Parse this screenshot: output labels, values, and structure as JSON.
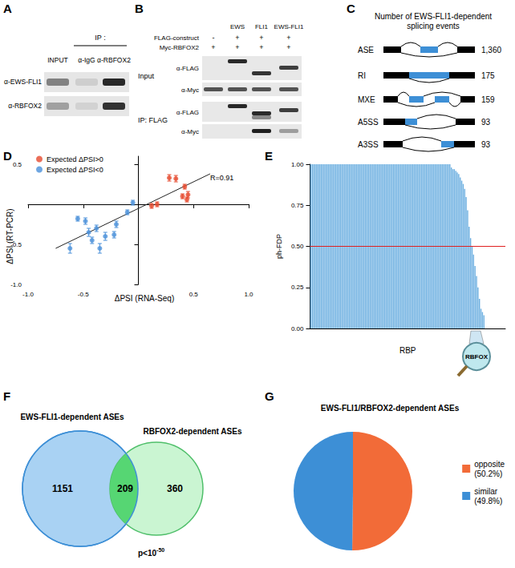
{
  "panel_letters": [
    "A",
    "B",
    "C",
    "D",
    "E",
    "F",
    "G"
  ],
  "panels": {
    "A": {
      "ip_header": "IP :",
      "columns": [
        "INPUT",
        "α-IgG",
        "α-RBFOX2"
      ],
      "rows": [
        "α-EWS-FLI1",
        "α-RBFOX2"
      ]
    },
    "B": {
      "columns": [
        "EWS",
        "FLI1",
        "EWS-FLI1"
      ],
      "conditions": [
        {
          "label": "FLAG-construct",
          "marks": [
            "-",
            "+",
            "+",
            "+"
          ]
        },
        {
          "label": "Myc-RBFOX2",
          "marks": [
            "+",
            "+",
            "+",
            "+"
          ]
        }
      ],
      "blocks": [
        {
          "label": "Input",
          "rows": [
            "α-FLAG",
            "α-Myc"
          ]
        },
        {
          "label": "IP: FLAG",
          "rows": [
            "α-FLAG",
            "α-Myc"
          ]
        }
      ]
    },
    "C": {
      "title": "Number of EWS-FLI1-dependent splicing events",
      "events": [
        {
          "label": "ASE",
          "count": "1,360"
        },
        {
          "label": "RI",
          "count": "175"
        },
        {
          "label": "MXE",
          "count": "159"
        },
        {
          "label": "A5SS",
          "count": "93"
        },
        {
          "label": "A3SS",
          "count": "93"
        }
      ]
    },
    "F": {
      "left_label": "EWS-FLI1-dependent ASEs",
      "right_label": "RBFOX2-dependent ASEs",
      "left_only": "1151",
      "both": "209",
      "right_only": "360",
      "p_value": {
        "base": "p<10",
        "exponent": "-50"
      }
    }
  },
  "chart_data": [
    {
      "type": "scatter",
      "x_label": "ΔPSI (RNA-Seq)",
      "y_label": "ΔPSI (RT-PCR)",
      "xlim": [
        -1.0,
        1.0
      ],
      "ylim": [
        -1.0,
        0.6
      ],
      "xticks": [
        {
          "value": -1.0,
          "label": "-1.0"
        },
        {
          "value": -0.5,
          "label": "-0.5"
        },
        {
          "value": 0.5,
          "label": "0.5"
        },
        {
          "value": 1.0,
          "label": "1.0"
        }
      ],
      "yticks": [
        {
          "value": -1.0,
          "label": "-1.0"
        },
        {
          "value": -0.5,
          "label": "-0.5"
        },
        {
          "value": 0.5,
          "label": "0.5"
        }
      ],
      "grid": false,
      "legend": "top-left",
      "annotation": "R=0.91",
      "series": [
        {
          "name": "Expected ΔPSI>0",
          "color": "#e64a2e",
          "x": [
            0.28,
            0.34,
            0.42,
            0.45,
            0.4,
            0.44,
            0.17,
            0.12
          ],
          "values": [
            0.33,
            0.32,
            0.22,
            0.12,
            0.1,
            0.06,
            0.0,
            -0.02
          ],
          "error": [
            0.04,
            0.04,
            0.03,
            0.04,
            0.03,
            0.03,
            0.03,
            0.03
          ]
        },
        {
          "name": "Expected ΔPSI<0",
          "color": "#4a90d9",
          "x": [
            -0.62,
            -0.55,
            -0.48,
            -0.45,
            -0.38,
            -0.3,
            -0.42,
            -0.35,
            -0.22,
            -0.2,
            -0.1,
            -0.05
          ],
          "values": [
            -0.55,
            -0.18,
            -0.21,
            -0.35,
            -0.3,
            -0.4,
            -0.45,
            -0.55,
            -0.38,
            -0.25,
            -0.1,
            0.02
          ],
          "error": [
            0.06,
            0.03,
            0.04,
            0.05,
            0.04,
            0.05,
            0.04,
            0.06,
            0.04,
            0.04,
            0.03,
            0.03
          ]
        }
      ],
      "fit_line": {
        "x": [
          -0.75,
          0.65
        ],
        "values": [
          -0.55,
          0.38
        ]
      }
    },
    {
      "type": "bar",
      "x_label": "RBP",
      "y_label": "ph-FDP",
      "color": "#6aaee0",
      "ylim": [
        0,
        1
      ],
      "yticks": [
        {
          "value": 0,
          "label": "0.00"
        },
        {
          "value": 0.25,
          "label": "0.25"
        },
        {
          "value": 0.5,
          "label": "0.50"
        },
        {
          "value": 0.75,
          "label": "0.75"
        },
        {
          "value": 1,
          "label": "1.00"
        }
      ],
      "grid": false,
      "threshold": 0.5,
      "annotation": "RBFOX",
      "categories": [
        null,
        null,
        null,
        null,
        null,
        null,
        null,
        null,
        null,
        null,
        null,
        null,
        null,
        null,
        null,
        null,
        null,
        null,
        null,
        null,
        null,
        null,
        null,
        null,
        null,
        null,
        null,
        null,
        null,
        null,
        null,
        null,
        null,
        null,
        null,
        null,
        null,
        null,
        null,
        null,
        null,
        null,
        null,
        null,
        null,
        null,
        null,
        null,
        null,
        null,
        null,
        null,
        null,
        null,
        null,
        null,
        null,
        null,
        null,
        null,
        null,
        null,
        null,
        null,
        null,
        null,
        null,
        null,
        null,
        null,
        null,
        null,
        null,
        null,
        null,
        null,
        null,
        null,
        null,
        null,
        null,
        null,
        null,
        null,
        null,
        null,
        null,
        null,
        null,
        null,
        null,
        null,
        null,
        null,
        null,
        null,
        null,
        null,
        null,
        null,
        null,
        null,
        null,
        null,
        null,
        null,
        null,
        null,
        null,
        null,
        null,
        null,
        null,
        null,
        null,
        null,
        null,
        null,
        null,
        null,
        null,
        null,
        null,
        null,
        null,
        null,
        null,
        null,
        null,
        null,
        null,
        null
      ],
      "values": [
        1,
        1,
        1,
        1,
        1,
        1,
        1,
        1,
        1,
        1,
        1,
        1,
        1,
        1,
        1,
        1,
        1,
        1,
        1,
        1,
        1,
        1,
        1,
        1,
        1,
        1,
        1,
        1,
        1,
        1,
        1,
        1,
        1,
        1,
        1,
        1,
        1,
        1,
        1,
        1,
        1,
        1,
        1,
        1,
        1,
        1,
        1,
        1,
        1,
        1,
        1,
        1,
        1,
        1,
        1,
        1,
        1,
        1,
        1,
        1,
        1,
        1,
        1,
        1,
        1,
        1,
        1,
        1,
        1,
        1,
        1,
        1,
        1,
        1,
        1,
        1,
        1,
        1,
        1,
        1,
        1,
        1,
        1,
        1,
        1,
        1,
        1,
        1,
        1,
        1,
        1,
        1,
        1,
        1,
        1,
        0.98,
        0.97,
        0.97,
        0.96,
        0.95,
        0.94,
        0.92,
        0.9,
        0.88,
        0.85,
        0.8,
        0.72,
        0.62,
        0.55,
        0.5,
        0.45,
        0.38,
        0.32,
        0.25,
        0.18,
        0.12,
        0.1,
        0.08,
        0,
        0,
        0,
        0,
        0,
        0,
        0,
        0,
        0,
        0,
        0,
        0,
        0,
        0
      ]
    },
    {
      "type": "pie",
      "title": "EWS-FLI1/RBFOX2-dependent ASEs",
      "categories": [
        "opposite",
        "similar"
      ],
      "values": [
        50.2,
        49.8
      ],
      "value_labels": [
        "(50.2%)",
        "(49.8%)"
      ],
      "colors": [
        "#f26b38",
        "#3d8fd6"
      ],
      "legend": "right"
    }
  ]
}
